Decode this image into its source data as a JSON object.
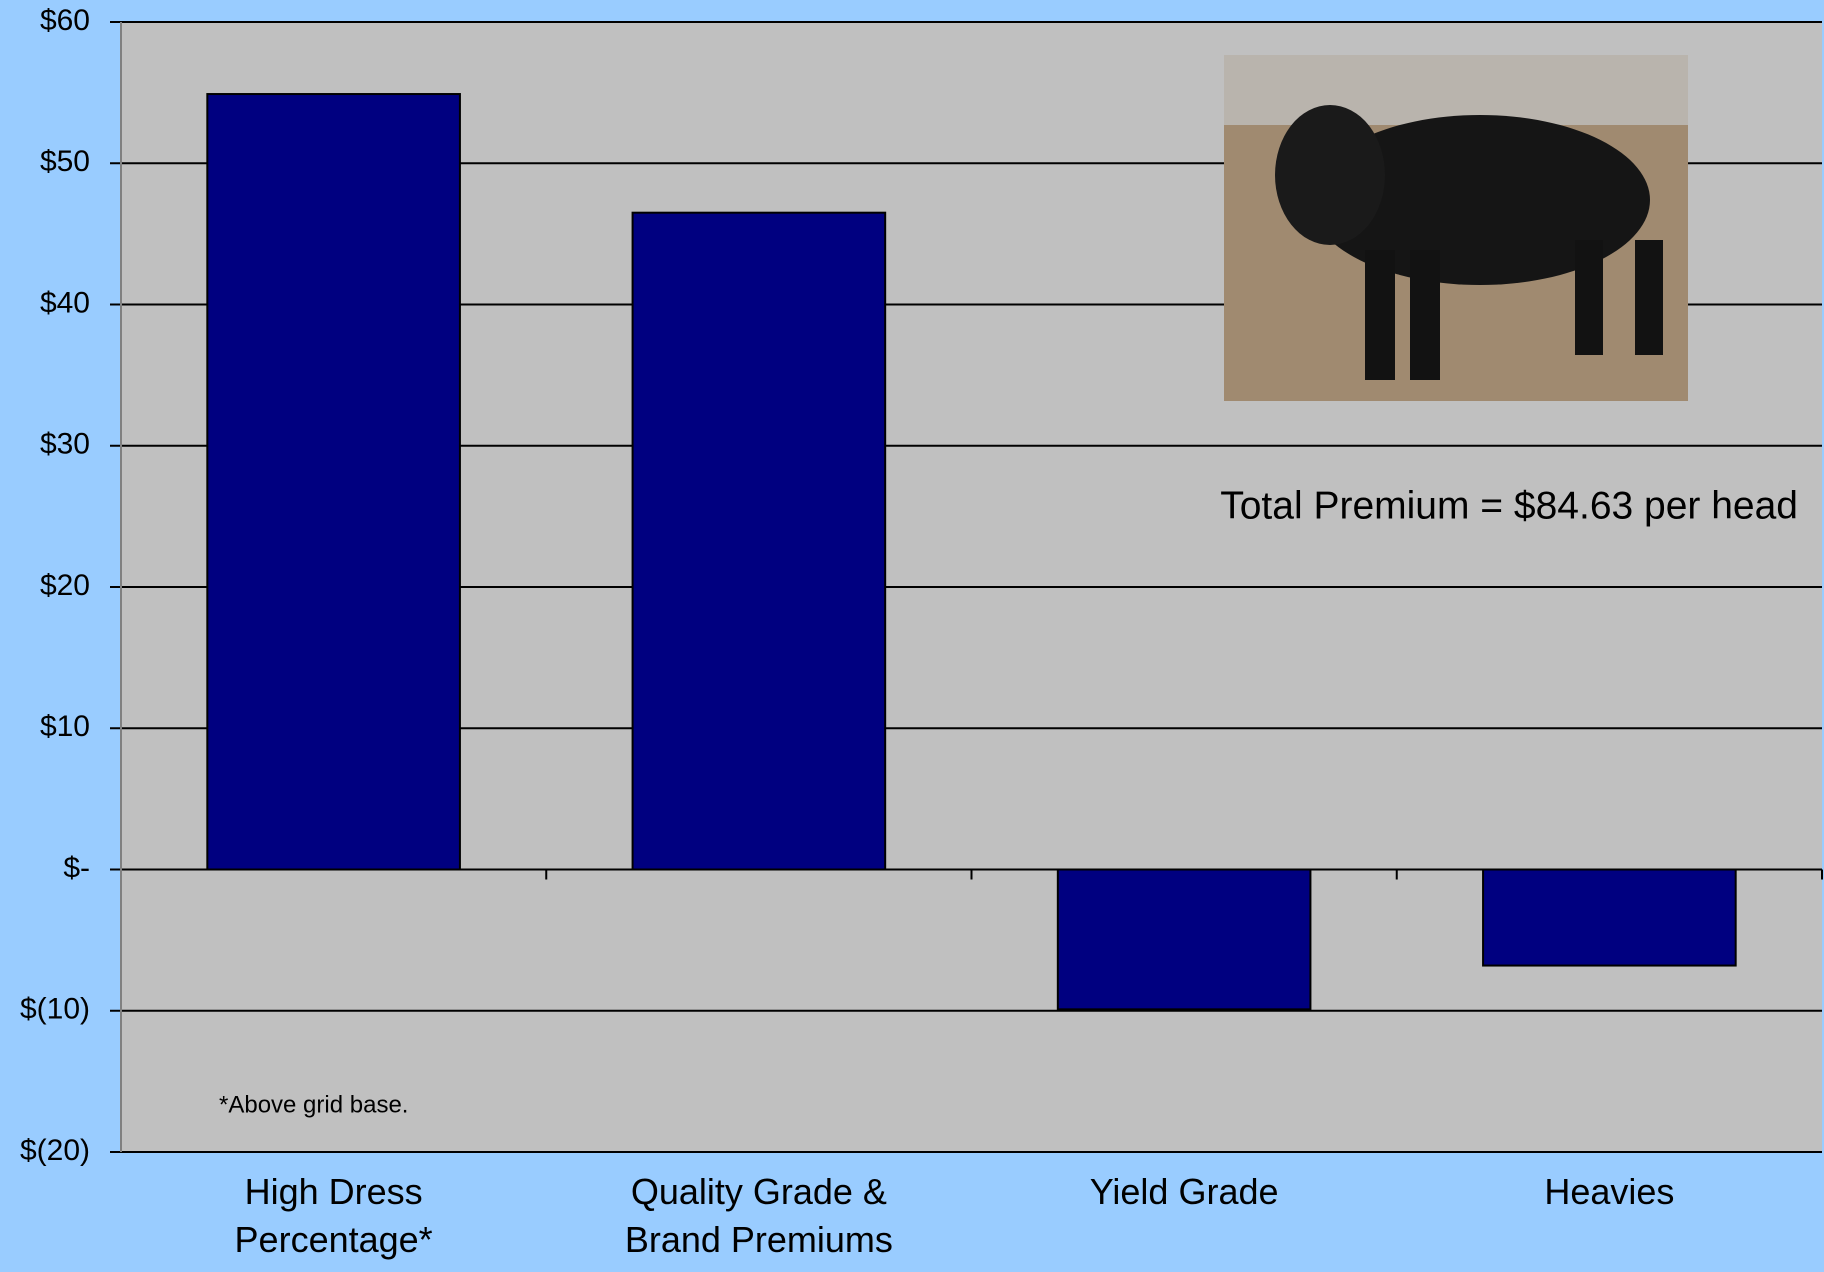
{
  "chart_data": {
    "type": "bar",
    "categories": [
      "High Dress Percentage*",
      "Quality Grade & Brand Premiums",
      "Yield Grade",
      "Heavies"
    ],
    "values": [
      54.9,
      46.5,
      -9.9,
      -6.8
    ],
    "color": "#000080",
    "ylim": [
      -20,
      60
    ],
    "yticks": [
      {
        "value": -20,
        "label": "$(20)"
      },
      {
        "value": -10,
        "label": "$(10)"
      },
      {
        "value": 0,
        "label": "$-"
      },
      {
        "value": 10,
        "label": "$10"
      },
      {
        "value": 20,
        "label": "$20"
      },
      {
        "value": 30,
        "label": "$30"
      },
      {
        "value": 40,
        "label": "$40"
      },
      {
        "value": 50,
        "label": "$50"
      },
      {
        "value": 60,
        "label": "$60"
      }
    ],
    "grid": true,
    "annotations": [
      "Total Premium = $84.63 per head",
      "*Above grid base."
    ]
  }
}
